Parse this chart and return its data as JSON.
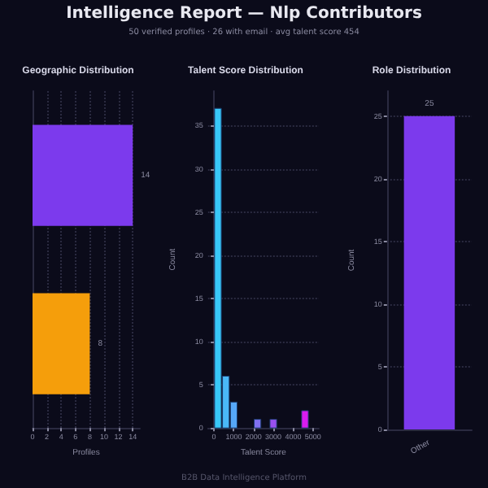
{
  "chart_data": [
    {
      "type": "other",
      "title": "Intelligence Report — Nlp Contributors",
      "subtitle": "50 verified profiles · 26 with email · avg talent score 454",
      "annotations": [
        "B2B Data Intelligence Platform"
      ]
    },
    {
      "type": "bar",
      "title": "Geographic Distribution",
      "orientation": "horizontal",
      "categories": [
        null,
        null
      ],
      "series": [
        {
          "values": [
            14,
            8
          ],
          "colors": [
            "#7c3aed",
            "#f59e0b"
          ]
        }
      ],
      "xlabel": "Profiles",
      "xlim": [
        0,
        15
      ],
      "xticks": [
        0,
        2,
        4,
        6,
        8,
        10,
        12,
        14
      ],
      "grid": "x",
      "data_labels": true
    },
    {
      "type": "histogram",
      "title": "Talent Score Distribution",
      "xlabel": "Talent Score",
      "ylabel": "Count",
      "bins": [
        0,
        400,
        800,
        1200,
        1600,
        2000,
        2400,
        2800,
        3200,
        3600,
        4000,
        4400,
        4800
      ],
      "values": [
        37,
        6,
        3,
        0,
        0,
        1,
        0,
        1,
        0,
        0,
        0,
        2
      ],
      "colors": [
        "#38c8f8",
        "#4ab8f8",
        "#56a8f8",
        null,
        null,
        "#8070f0",
        null,
        "#9a50f0",
        null,
        null,
        null,
        "#d81cf0"
      ],
      "xlim": [
        -300,
        5300
      ],
      "xticks": [
        0,
        1000,
        2000,
        3000,
        4000,
        5000
      ],
      "ylim": [
        0,
        39
      ],
      "yticks": [
        0,
        5,
        10,
        15,
        20,
        25,
        30,
        35
      ],
      "grid": "y"
    },
    {
      "type": "bar",
      "title": "Role Distribution",
      "ylabel": "Count",
      "categories": [
        "Other"
      ],
      "series": [
        {
          "values": [
            25
          ],
          "color": "#7c3aed"
        }
      ],
      "ylim": [
        0,
        27
      ],
      "yticks": [
        0,
        5,
        10,
        15,
        20,
        25
      ],
      "grid": "y",
      "data_labels": true
    }
  ]
}
